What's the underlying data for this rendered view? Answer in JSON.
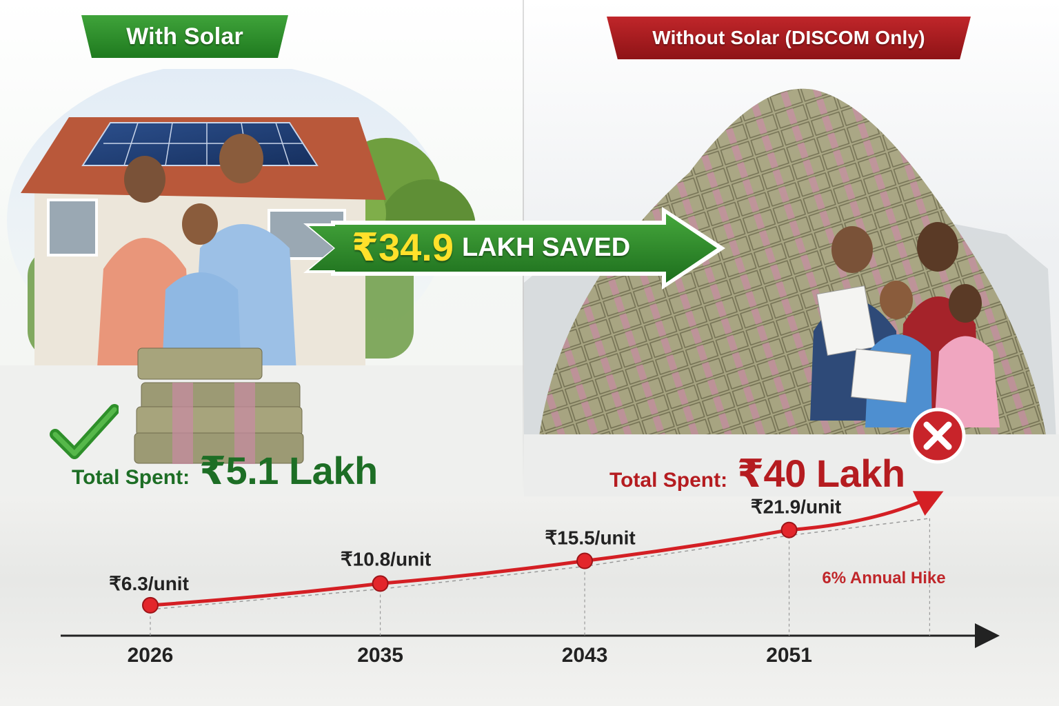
{
  "left": {
    "banner": "With Solar",
    "total_label": "Total Spent:",
    "total_value": "₹5.1 Lakh"
  },
  "right": {
    "banner": "Without Solar (DISCOM Only)",
    "total_label": "Total Spent:",
    "total_value": "₹40 Lakh"
  },
  "savings": {
    "amount": "₹34.9",
    "label": "LAKH SAVED"
  },
  "colors": {
    "green": "#1f7a1f",
    "red": "#c0262a",
    "savings_yellow": "#ffe12b"
  },
  "icons": {
    "left": "checkmark-icon",
    "right": "cross-icon"
  },
  "chart_data": {
    "type": "line",
    "categories": [
      "2026",
      "2035",
      "2043",
      "2051"
    ],
    "values": [
      6.3,
      10.8,
      15.5,
      21.9
    ],
    "point_labels": [
      "₹6.3/unit",
      "₹10.8/unit",
      "₹15.5/unit",
      "₹21.9/unit"
    ],
    "annotation": "6% Annual Hike",
    "grid": false,
    "x_range": [
      2026,
      2058
    ],
    "y_range": [
      0,
      26
    ]
  }
}
